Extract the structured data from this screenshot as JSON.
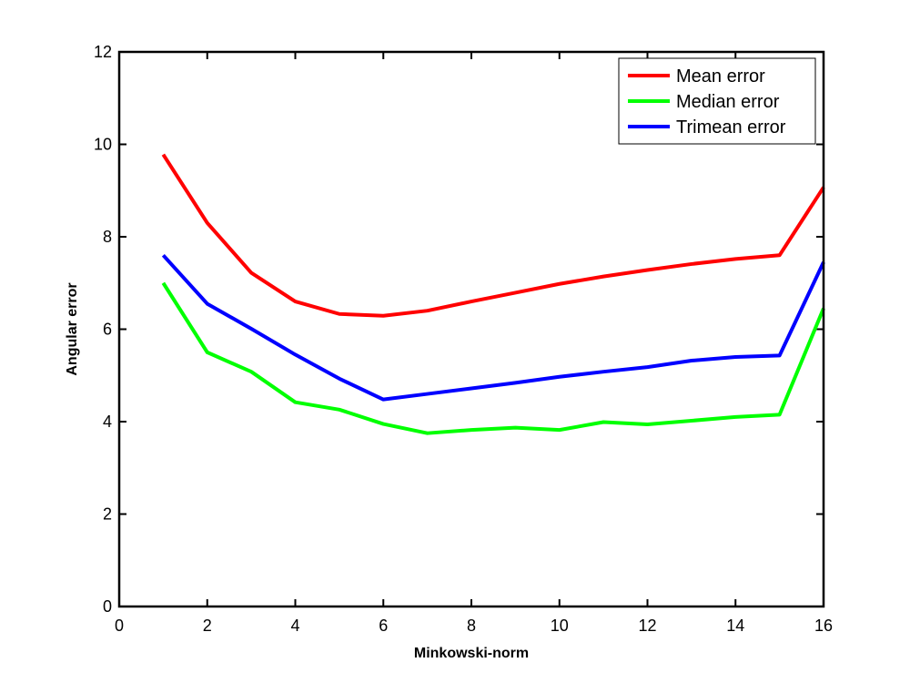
{
  "chart_data": {
    "type": "line",
    "title": "",
    "xlabel": "Minkowski-norm",
    "ylabel": "Angular error",
    "xlim": [
      0,
      16
    ],
    "ylim": [
      0,
      12
    ],
    "xticks": [
      0,
      2,
      4,
      6,
      8,
      10,
      12,
      14,
      16
    ],
    "yticks": [
      0,
      2,
      4,
      6,
      8,
      10,
      12
    ],
    "grid": false,
    "legend_position": "top-right",
    "x": [
      1,
      2,
      3,
      4,
      5,
      6,
      7,
      8,
      9,
      10,
      11,
      12,
      13,
      14,
      15,
      16
    ],
    "series": [
      {
        "name": "Mean error",
        "color": "#ff0000",
        "values": [
          9.78,
          8.3,
          7.22,
          6.6,
          6.33,
          6.29,
          6.4,
          6.6,
          6.79,
          6.98,
          7.14,
          7.28,
          7.41,
          7.52,
          7.6,
          9.07
        ]
      },
      {
        "name": "Median error",
        "color": "#00ff00",
        "values": [
          7.0,
          5.5,
          5.08,
          4.42,
          4.26,
          3.95,
          3.75,
          3.82,
          3.87,
          3.82,
          3.99,
          3.94,
          4.02,
          4.1,
          4.15,
          6.45
        ]
      },
      {
        "name": "Trimean error",
        "color": "#0000ff",
        "values": [
          7.6,
          6.55,
          6.01,
          5.45,
          4.93,
          4.48,
          4.6,
          4.72,
          4.84,
          4.97,
          5.08,
          5.18,
          5.32,
          5.4,
          5.43,
          7.45
        ]
      }
    ]
  }
}
